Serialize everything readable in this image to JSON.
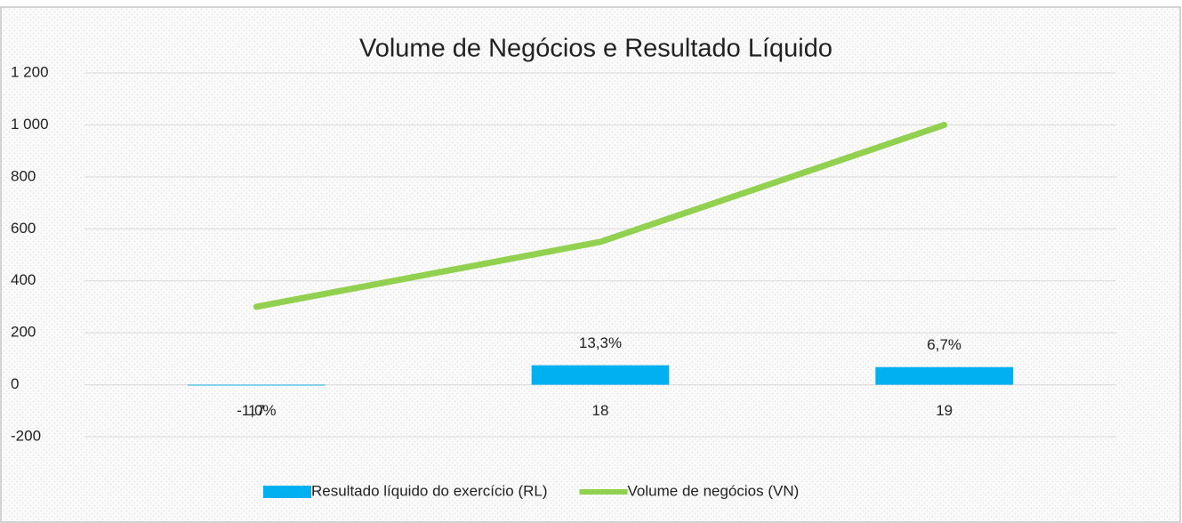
{
  "chart_data": {
    "type": "bar+line",
    "title": "Volume de Negócios e Resultado Líquido",
    "categories": [
      "17",
      "18",
      "19"
    ],
    "series": [
      {
        "name": "Resultado líquido do exercício (RL)",
        "type": "bar",
        "color": "#00b0f0",
        "values": [
          -3,
          75,
          68
        ]
      },
      {
        "name": "Volume de negócios (VN)",
        "type": "line",
        "color": "#92d050",
        "values": [
          300,
          550,
          1000
        ]
      }
    ],
    "annotations": [
      "-1,0%",
      "13,3%",
      "6,7%"
    ],
    "ylim": [
      -200,
      1200
    ],
    "yticks": [
      {
        "value": -200,
        "label": "-200"
      },
      0,
      200,
      400,
      600,
      800,
      {
        "value": 1000,
        "label": "1 000"
      },
      {
        "value": 1200,
        "label": "1 200"
      }
    ],
    "grid": true,
    "legend": "bottom"
  }
}
